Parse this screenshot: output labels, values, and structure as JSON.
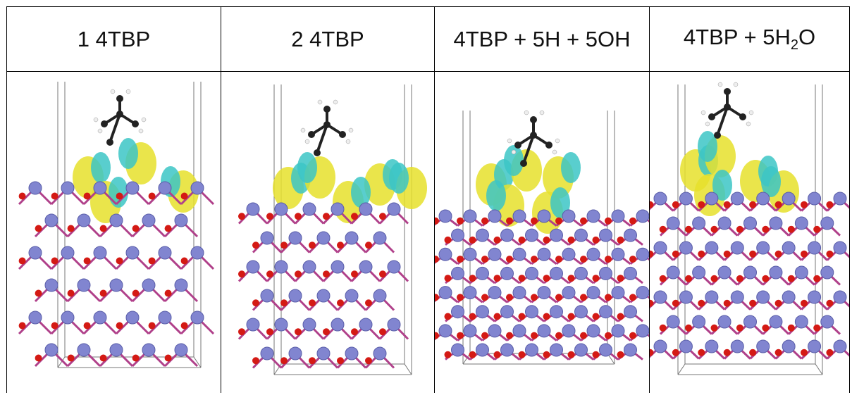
{
  "table": {
    "headers": [
      "1 4TBP",
      "2 4TBP",
      "4TBP + 5H + 5OH",
      [
        "4TBP + 5H",
        "2",
        "O"
      ]
    ]
  }
}
